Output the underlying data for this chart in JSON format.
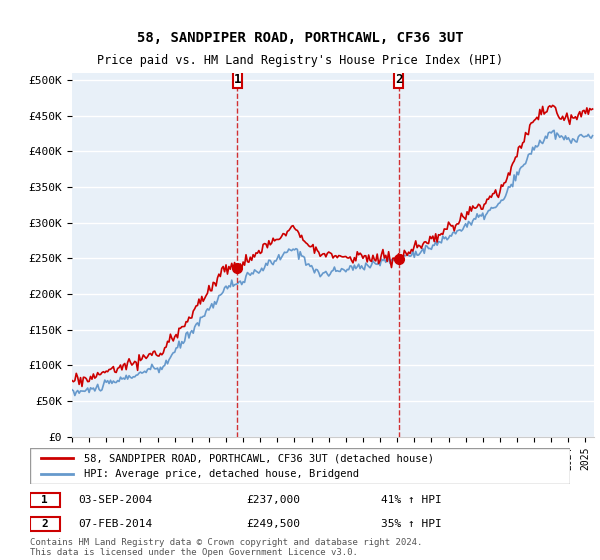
{
  "title": "58, SANDPIPER ROAD, PORTHCAWL, CF36 3UT",
  "subtitle": "Price paid vs. HM Land Registry's House Price Index (HPI)",
  "ylabel": "",
  "background_color": "#ffffff",
  "plot_background": "#e8f0f8",
  "grid_color": "#ffffff",
  "ylim": [
    0,
    510000
  ],
  "yticks": [
    0,
    50000,
    100000,
    150000,
    200000,
    250000,
    300000,
    350000,
    400000,
    450000,
    500000
  ],
  "ytick_labels": [
    "£0",
    "£50K",
    "£100K",
    "£150K",
    "£200K",
    "£250K",
    "£300K",
    "£350K",
    "£400K",
    "£450K",
    "£500K"
  ],
  "legend_entry1": "58, SANDPIPER ROAD, PORTHCAWL, CF36 3UT (detached house)",
  "legend_entry2": "HPI: Average price, detached house, Bridgend",
  "marker1_label": "1",
  "marker1_date": "03-SEP-2004",
  "marker1_price": "£237,000",
  "marker1_hpi": "41% ↑ HPI",
  "marker2_label": "2",
  "marker2_date": "07-FEB-2014",
  "marker2_price": "£249,500",
  "marker2_hpi": "35% ↑ HPI",
  "footer": "Contains HM Land Registry data © Crown copyright and database right 2024.\nThis data is licensed under the Open Government Licence v3.0.",
  "line1_color": "#cc0000",
  "line2_color": "#6699cc",
  "marker_color": "#cc0000",
  "marker_box_color": "#cc0000",
  "hpi_red_color": "#cc0000",
  "sale1_x": 2004.67,
  "sale1_y": 237000,
  "sale2_x": 2014.09,
  "sale2_y": 249500,
  "xmin": 1995.0,
  "xmax": 2025.5
}
